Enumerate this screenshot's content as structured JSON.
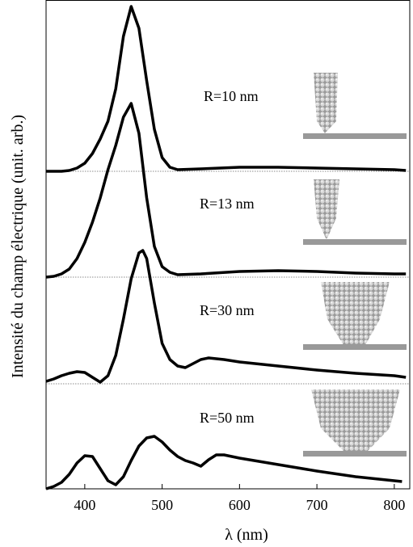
{
  "chart_data": {
    "type": "line",
    "y_label": "Intensité du champ électrique   (unit. arb.)",
    "x_label": "λ (nm)",
    "xlim": [
      350,
      820
    ],
    "xticks": [
      400,
      500,
      600,
      700,
      800
    ],
    "ylim": [
      0,
      605
    ],
    "baselines": [
      393,
      262,
      130
    ],
    "series": [
      {
        "name": "R=10 nm",
        "color": "#000000",
        "x": [
          350,
          360,
          370,
          380,
          390,
          400,
          410,
          420,
          430,
          440,
          450,
          460,
          470,
          480,
          490,
          500,
          510,
          520,
          550,
          600,
          650,
          700,
          750,
          800,
          815
        ],
        "values": [
          393,
          393,
          393,
          394,
          397,
          403,
          415,
          433,
          455,
          495,
          560,
          597,
          570,
          505,
          445,
          410,
          398,
          395,
          396,
          398,
          398,
          397,
          396,
          395,
          394
        ]
      },
      {
        "name": "R=13 nm",
        "color": "#000000",
        "x": [
          350,
          360,
          370,
          380,
          390,
          400,
          410,
          420,
          430,
          440,
          450,
          460,
          470,
          480,
          490,
          500,
          510,
          520,
          550,
          600,
          650,
          700,
          750,
          800,
          815
        ],
        "values": [
          262,
          263,
          266,
          272,
          285,
          305,
          330,
          360,
          395,
          425,
          460,
          477,
          440,
          360,
          300,
          275,
          268,
          265,
          266,
          269,
          270,
          269,
          267,
          266,
          266
        ]
      },
      {
        "name": "R=30 nm",
        "color": "#000000",
        "x": [
          350,
          360,
          370,
          380,
          390,
          400,
          410,
          420,
          430,
          440,
          450,
          460,
          470,
          475,
          480,
          490,
          500,
          510,
          520,
          530,
          540,
          550,
          560,
          580,
          600,
          650,
          700,
          750,
          800,
          815
        ],
        "values": [
          133,
          136,
          140,
          143,
          145,
          144,
          138,
          132,
          140,
          165,
          210,
          260,
          292,
          295,
          285,
          230,
          180,
          160,
          152,
          150,
          155,
          160,
          162,
          160,
          157,
          152,
          147,
          143,
          140,
          138
        ]
      },
      {
        "name": "R=50 nm",
        "color": "#000000",
        "x": [
          350,
          360,
          370,
          380,
          390,
          400,
          410,
          420,
          430,
          440,
          450,
          460,
          470,
          480,
          490,
          500,
          510,
          520,
          530,
          540,
          550,
          560,
          570,
          580,
          600,
          650,
          700,
          750,
          800,
          810
        ],
        "values": [
          0,
          3,
          8,
          18,
          32,
          41,
          40,
          25,
          10,
          5,
          15,
          35,
          53,
          63,
          65,
          58,
          48,
          40,
          35,
          32,
          28,
          36,
          42,
          42,
          38,
          30,
          22,
          15,
          10,
          9
        ]
      }
    ]
  }
}
